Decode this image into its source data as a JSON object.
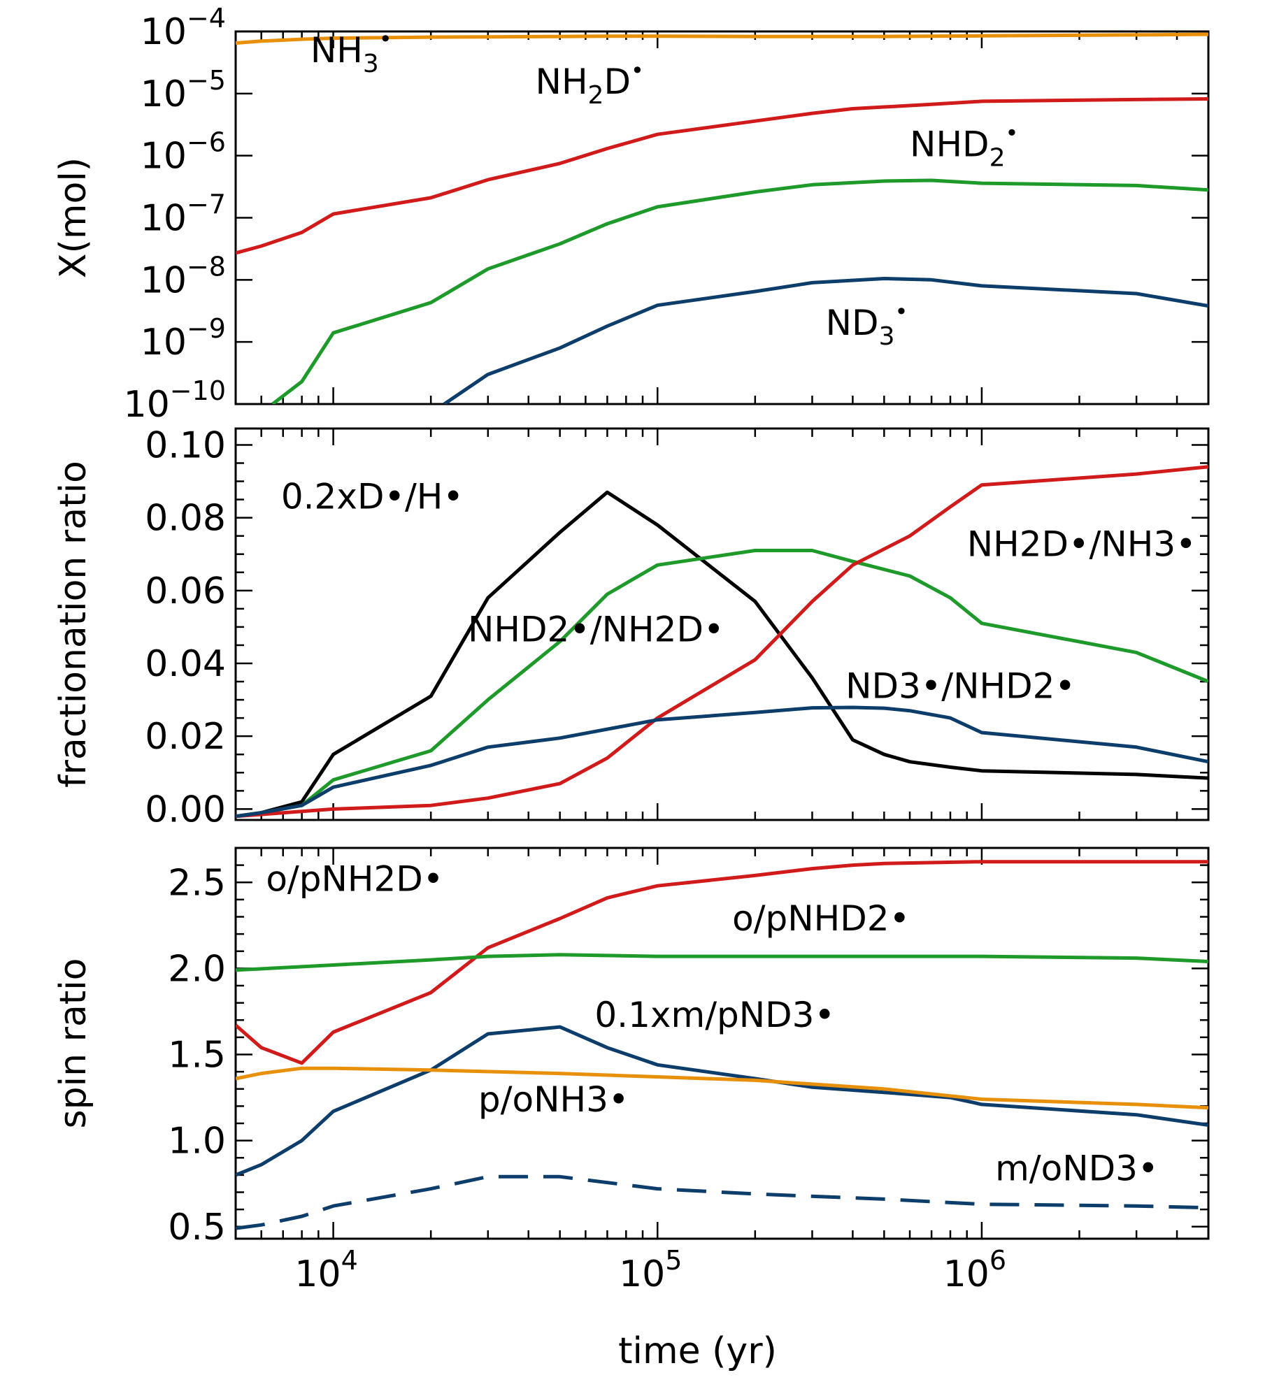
{
  "colors": {
    "orange": "#e8900a",
    "red": "#d11a1a",
    "green": "#1e9a2a",
    "blue": "#0d3d6b",
    "black": "#000000"
  },
  "chart_data": [
    {
      "type": "line",
      "xscale": "log",
      "yscale": "log",
      "xlim": [
        5000,
        5000000
      ],
      "ylim": [
        1e-10,
        0.0001
      ],
      "ylabel": "X(mol)",
      "xlabel": "",
      "yticks": [
        {
          "value": 0.0001,
          "base": "10",
          "exp": "−4"
        },
        {
          "value": 1e-05,
          "base": "10",
          "exp": "−5"
        },
        {
          "value": 1e-06,
          "base": "10",
          "exp": "−6"
        },
        {
          "value": 1e-07,
          "base": "10",
          "exp": "−7"
        },
        {
          "value": 1e-08,
          "base": "10",
          "exp": "−8"
        },
        {
          "value": 1e-09,
          "base": "10",
          "exp": "−9"
        },
        {
          "value": 1e-10,
          "base": "10",
          "exp": "−10"
        }
      ],
      "series": [
        {
          "name": "NH3*",
          "color": "orange",
          "dash": false,
          "x": [
            5000,
            6000,
            8000,
            10000,
            20000,
            30000,
            50000,
            70000,
            100000,
            200000,
            300000,
            500000,
            700000,
            1000000,
            3000000,
            5000000
          ],
          "y": [
            6.5e-05,
            7e-05,
            7.5e-05,
            7.8e-05,
            8.1e-05,
            8.2e-05,
            8.3e-05,
            8.4e-05,
            8.4e-05,
            8.3e-05,
            8.3e-05,
            8.3e-05,
            8.4e-05,
            8.5e-05,
            8.8e-05,
            9e-05
          ],
          "label": {
            "main": "NH",
            "sub": "3",
            "rest": "",
            "at": [
              8500,
              3.2e-05
            ]
          }
        },
        {
          "name": "NH2D*",
          "color": "red",
          "dash": false,
          "x": [
            5000,
            6000,
            8000,
            10000,
            20000,
            30000,
            50000,
            70000,
            100000,
            200000,
            300000,
            400000,
            700000,
            1000000,
            3000000,
            5000000
          ],
          "y": [
            2.7e-08,
            3.5e-08,
            5.8e-08,
            1.15e-07,
            2.1e-07,
            4.1e-07,
            7.5e-07,
            1.3e-06,
            2.2e-06,
            3.6e-06,
            4.8e-06,
            5.7e-06,
            6.7e-06,
            7.5e-06,
            8e-06,
            8.2e-06
          ],
          "label": {
            "main": "NH",
            "sub": "2",
            "rest": "D",
            "at": [
              42000,
              1e-05
            ]
          }
        },
        {
          "name": "NHD2*",
          "color": "green",
          "dash": false,
          "x": [
            6500,
            8000,
            10000,
            20000,
            30000,
            50000,
            70000,
            100000,
            200000,
            300000,
            500000,
            700000,
            1000000,
            3000000,
            5000000
          ],
          "y": [
            1e-10,
            2.3e-10,
            1.4e-09,
            4.3e-09,
            1.5e-08,
            3.8e-08,
            8e-08,
            1.5e-07,
            2.6e-07,
            3.4e-07,
            3.9e-07,
            4e-07,
            3.6e-07,
            3.3e-07,
            2.8e-07
          ],
          "label": {
            "main": "NHD",
            "sub": "2",
            "rest": "",
            "at": [
              600000,
              9.8e-07
            ]
          }
        },
        {
          "name": "ND3*",
          "color": "blue",
          "dash": false,
          "x": [
            22000,
            30000,
            50000,
            70000,
            100000,
            200000,
            300000,
            500000,
            700000,
            1000000,
            3000000,
            5000000
          ],
          "y": [
            1e-10,
            3e-10,
            8e-10,
            1.8e-09,
            3.9e-09,
            6.5e-09,
            9e-09,
            1.05e-08,
            1e-08,
            8e-09,
            6e-09,
            3.8e-09
          ],
          "label": {
            "main": "ND",
            "sub": "3",
            "rest": "",
            "at": [
              330000,
              1.3e-09
            ]
          }
        }
      ]
    },
    {
      "type": "line",
      "xscale": "log",
      "yscale": "linear",
      "xlim": [
        5000,
        5000000
      ],
      "ylim": [
        -0.003,
        0.1045
      ],
      "ylabel": "fractionation ratio",
      "xlabel": "",
      "yticks": [
        {
          "value": 0.1,
          "label": "0.10"
        },
        {
          "value": 0.08,
          "label": "0.08"
        },
        {
          "value": 0.06,
          "label": "0.06"
        },
        {
          "value": 0.04,
          "label": "0.04"
        },
        {
          "value": 0.02,
          "label": "0.02"
        },
        {
          "value": 0.0,
          "label": "0.00"
        }
      ],
      "series": [
        {
          "name": "0.2xD*/H*",
          "color": "black",
          "dash": false,
          "x": [
            5000,
            6000,
            8000,
            10000,
            20000,
            30000,
            50000,
            70000,
            100000,
            200000,
            300000,
            400000,
            500000,
            600000,
            800000,
            1000000,
            3000000,
            5000000
          ],
          "y": [
            -0.002,
            -0.001,
            0.002,
            0.015,
            0.031,
            0.058,
            0.076,
            0.087,
            0.078,
            0.057,
            0.036,
            0.019,
            0.015,
            0.013,
            0.0115,
            0.0105,
            0.0095,
            0.0085
          ],
          "label": {
            "text": "0.2xD•/H•",
            "at": [
              6900,
              0.0825
            ]
          }
        },
        {
          "name": "NHD2*/NH2D*",
          "color": "green",
          "dash": false,
          "x": [
            5000,
            6000,
            8000,
            10000,
            20000,
            30000,
            50000,
            70000,
            100000,
            200000,
            300000,
            400000,
            600000,
            800000,
            1000000,
            3000000,
            5000000
          ],
          "y": [
            -0.002,
            -0.001,
            0.001,
            0.008,
            0.016,
            0.03,
            0.046,
            0.059,
            0.067,
            0.071,
            0.071,
            0.068,
            0.064,
            0.058,
            0.051,
            0.043,
            0.035
          ],
          "label": {
            "text": "NHD2•/NH2D•",
            "at": [
              26000,
              0.046
            ]
          }
        },
        {
          "name": "NH2D*/NH3*",
          "color": "red",
          "dash": false,
          "x": [
            5000,
            10000,
            20000,
            30000,
            50000,
            70000,
            100000,
            200000,
            300000,
            400000,
            600000,
            800000,
            1000000,
            3000000,
            5000000
          ],
          "y": [
            -0.002,
            0.0,
            0.001,
            0.003,
            0.007,
            0.014,
            0.025,
            0.041,
            0.057,
            0.067,
            0.075,
            0.083,
            0.089,
            0.092,
            0.094
          ],
          "label": {
            "text": "NH2D•/NH3•",
            "at": [
              900000,
              0.0695
            ]
          }
        },
        {
          "name": "ND3*/NHD2*",
          "color": "blue",
          "dash": false,
          "x": [
            5000,
            6000,
            8000,
            10000,
            20000,
            30000,
            50000,
            100000,
            200000,
            300000,
            400000,
            500000,
            600000,
            800000,
            1000000,
            3000000,
            5000000
          ],
          "y": [
            -0.002,
            -0.001,
            0.001,
            0.006,
            0.012,
            0.017,
            0.0195,
            0.0245,
            0.0265,
            0.0278,
            0.0279,
            0.0277,
            0.027,
            0.025,
            0.021,
            0.017,
            0.013
          ],
          "label": {
            "text": "ND3•/NHD2•",
            "at": [
              380000,
              0.0305
            ]
          }
        }
      ]
    },
    {
      "type": "line",
      "xscale": "log",
      "yscale": "linear",
      "xlim": [
        5000,
        5000000
      ],
      "ylim": [
        0.43,
        2.7
      ],
      "ylabel": "spin ratio",
      "xlabel": "time (yr)",
      "yticks": [
        {
          "value": 2.5,
          "label": "2.5"
        },
        {
          "value": 2.0,
          "label": "2.0"
        },
        {
          "value": 1.5,
          "label": "1.5"
        },
        {
          "value": 1.0,
          "label": "1.0"
        },
        {
          "value": 0.5,
          "label": "0.5"
        }
      ],
      "xticks": [
        {
          "value": 10000,
          "base": "10",
          "exp": "4"
        },
        {
          "value": 100000,
          "base": "10",
          "exp": "5"
        },
        {
          "value": 1000000,
          "base": "10",
          "exp": "6"
        }
      ],
      "series": [
        {
          "name": "o/pNH2D*",
          "color": "red",
          "dash": false,
          "x": [
            5000,
            6000,
            8000,
            10000,
            20000,
            30000,
            50000,
            70000,
            100000,
            200000,
            300000,
            400000,
            500000,
            1000000,
            3000000,
            5000000
          ],
          "y": [
            1.67,
            1.54,
            1.45,
            1.63,
            1.86,
            2.12,
            2.29,
            2.41,
            2.48,
            2.54,
            2.58,
            2.6,
            2.61,
            2.62,
            2.62,
            2.62
          ],
          "label": {
            "text": "o/pNH2D•",
            "at": [
              6200,
              2.45
            ]
          }
        },
        {
          "name": "o/pNHD2*",
          "color": "green",
          "dash": false,
          "x": [
            5000,
            10000,
            20000,
            30000,
            50000,
            100000,
            200000,
            500000,
            1000000,
            3000000,
            5000000
          ],
          "y": [
            1.99,
            2.02,
            2.05,
            2.07,
            2.08,
            2.07,
            2.07,
            2.07,
            2.07,
            2.06,
            2.04
          ],
          "label": {
            "text": "o/pNHD2•",
            "at": [
              170000,
              2.22
            ]
          }
        },
        {
          "name": "0.1xm/pND3*",
          "color": "blue",
          "dash": false,
          "x": [
            5000,
            6000,
            8000,
            10000,
            20000,
            30000,
            50000,
            70000,
            100000,
            200000,
            300000,
            500000,
            800000,
            1000000,
            3000000,
            5000000
          ],
          "y": [
            0.8,
            0.86,
            1.0,
            1.17,
            1.41,
            1.62,
            1.66,
            1.54,
            1.44,
            1.36,
            1.31,
            1.28,
            1.25,
            1.21,
            1.15,
            1.09
          ],
          "label": {
            "text": "0.1xm/pND3•",
            "at": [
              64000,
              1.66
            ]
          }
        },
        {
          "name": "p/oNH3*",
          "color": "orange",
          "dash": false,
          "x": [
            5000,
            6000,
            8000,
            10000,
            20000,
            50000,
            100000,
            200000,
            500000,
            1000000,
            3000000,
            5000000
          ],
          "y": [
            1.36,
            1.39,
            1.42,
            1.42,
            1.41,
            1.39,
            1.37,
            1.35,
            1.3,
            1.24,
            1.21,
            1.19
          ],
          "label": {
            "text": "p/oNH3•",
            "at": [
              28000,
              1.17
            ]
          }
        },
        {
          "name": "m/oND3*",
          "color": "blue",
          "dash": true,
          "x": [
            5000,
            6000,
            8000,
            10000,
            20000,
            30000,
            50000,
            100000,
            200000,
            500000,
            1000000,
            3000000,
            5000000
          ],
          "y": [
            0.49,
            0.51,
            0.56,
            0.62,
            0.72,
            0.79,
            0.79,
            0.72,
            0.69,
            0.66,
            0.63,
            0.62,
            0.61
          ],
          "label": {
            "text": "m/oND3•",
            "at": [
              1100000,
              0.77
            ]
          }
        }
      ]
    }
  ]
}
